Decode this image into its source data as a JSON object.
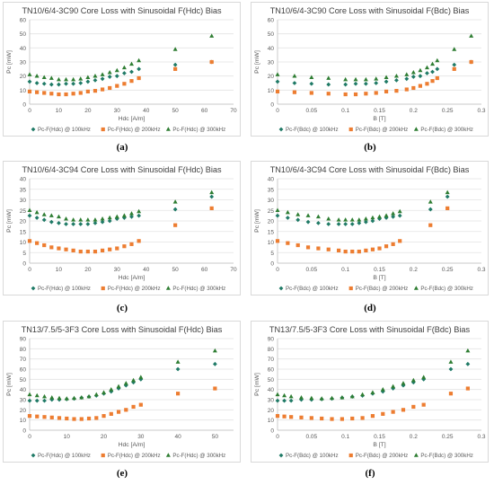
{
  "chart_data": [
    {
      "type": "scatter",
      "title": "TN10/6/4-3C90 Core Loss with Sinusoidal F(Hdc) Bias",
      "xlabel": "Hdc [A/m]",
      "ylabel": "Pc [mW]",
      "xlim": [
        0,
        70
      ],
      "ylim": [
        0,
        60
      ],
      "xticks": [
        0,
        10,
        20,
        30,
        40,
        50,
        60,
        70
      ],
      "yticks": [
        0,
        10,
        20,
        30,
        40,
        50,
        60
      ],
      "grid": true,
      "legend_position": "bottom",
      "caption": "(a)",
      "series": [
        {
          "name": "Pc-F(Hdc) @ 100kHz",
          "color": "#1f7a66",
          "marker": "diamond",
          "x": [
            0,
            2.5,
            5,
            7.5,
            10,
            12.5,
            15,
            17.5,
            20,
            22.5,
            25,
            27.5,
            30,
            32.5,
            35,
            37.5,
            50,
            62.5
          ],
          "y": [
            16,
            15,
            14.5,
            14,
            14,
            14.5,
            14.5,
            15,
            16,
            17,
            18,
            19.5,
            20,
            22,
            23,
            25,
            28,
            30
          ]
        },
        {
          "name": "Pc-F(Hdc) @ 200kHz",
          "color": "#ed7d31",
          "marker": "square",
          "x": [
            0,
            2.5,
            5,
            7.5,
            10,
            12.5,
            15,
            17.5,
            20,
            22.5,
            25,
            27.5,
            30,
            32.5,
            35,
            37.5,
            50,
            62.5
          ],
          "y": [
            9,
            8.5,
            8,
            7.5,
            7,
            7,
            7.5,
            8,
            9,
            9.5,
            10.5,
            11.5,
            13,
            14.5,
            16.5,
            18.5,
            25,
            30
          ]
        },
        {
          "name": "Pc-F(Hdc) @ 300kHz",
          "color": "#2e7d32",
          "marker": "triangle",
          "x": [
            0,
            2.5,
            5,
            7.5,
            10,
            12.5,
            15,
            17.5,
            20,
            22.5,
            25,
            27.5,
            30,
            32.5,
            35,
            37.5,
            50,
            62.5
          ],
          "y": [
            21,
            20,
            19,
            18.5,
            17.5,
            17.5,
            17.5,
            18,
            19,
            20,
            21,
            22.5,
            24,
            26,
            28.5,
            31,
            39,
            48.5
          ]
        }
      ]
    },
    {
      "type": "scatter",
      "title": "TN10/6/4-3C90 Core Loss with Sinusoidal F(Bdc) Bias",
      "xlabel": "B [T]",
      "ylabel": "Pc [mW]",
      "xlim": [
        0,
        0.3
      ],
      "ylim": [
        0,
        60
      ],
      "xticks": [
        0,
        0.05,
        0.1,
        0.15,
        0.2,
        0.25,
        0.3
      ],
      "yticks": [
        0,
        10,
        20,
        30,
        40,
        50,
        60
      ],
      "grid": true,
      "legend_position": "bottom",
      "caption": "(b)",
      "series": [
        {
          "name": "Pc-F(Bdc) @ 100kHz",
          "color": "#1f7a66",
          "marker": "diamond",
          "x": [
            0,
            0.025,
            0.05,
            0.075,
            0.1,
            0.115,
            0.13,
            0.145,
            0.16,
            0.175,
            0.19,
            0.2,
            0.21,
            0.22,
            0.228,
            0.235,
            0.26,
            0.285
          ],
          "y": [
            16,
            15,
            14.5,
            14,
            14,
            14.5,
            14.5,
            15,
            16,
            17,
            18,
            19.5,
            20,
            22,
            23,
            25,
            28,
            30
          ]
        },
        {
          "name": "Pc-F(Bdc) @ 200kHz",
          "color": "#ed7d31",
          "marker": "square",
          "x": [
            0,
            0.025,
            0.05,
            0.075,
            0.1,
            0.115,
            0.13,
            0.145,
            0.16,
            0.175,
            0.19,
            0.2,
            0.21,
            0.22,
            0.228,
            0.235,
            0.26,
            0.285
          ],
          "y": [
            9,
            8.5,
            8,
            7.5,
            7,
            7,
            7.5,
            8,
            9,
            9.5,
            10.5,
            11.5,
            13,
            14.5,
            16.5,
            18.5,
            25,
            30
          ]
        },
        {
          "name": "Pc-F(Bdc) @ 300kHz",
          "color": "#2e7d32",
          "marker": "triangle",
          "x": [
            0,
            0.025,
            0.05,
            0.075,
            0.1,
            0.115,
            0.13,
            0.145,
            0.16,
            0.175,
            0.19,
            0.2,
            0.21,
            0.22,
            0.228,
            0.235,
            0.26,
            0.285
          ],
          "y": [
            21,
            20,
            19,
            18.5,
            17.5,
            17.5,
            17.5,
            18,
            19,
            20,
            21,
            22.5,
            24,
            26,
            28.5,
            31,
            39,
            48.5
          ]
        }
      ]
    },
    {
      "type": "scatter",
      "title": "TN10/6/4-3C94 Core Loss with Sinusoidal F(Hdc) Bias",
      "xlabel": "Hdc [A/m]",
      "ylabel": "Pc [mW]",
      "xlim": [
        0,
        70
      ],
      "ylim": [
        0,
        40
      ],
      "xticks": [
        0,
        10,
        20,
        30,
        40,
        50,
        60,
        70
      ],
      "yticks": [
        0,
        5,
        10,
        15,
        20,
        25,
        30,
        35,
        40
      ],
      "grid": true,
      "legend_position": "bottom",
      "caption": "(c)",
      "series": [
        {
          "name": "Pc-F(Hdc) @ 100kHz",
          "color": "#1f7a66",
          "marker": "diamond",
          "x": [
            0,
            2.5,
            5,
            7.5,
            10,
            12.5,
            15,
            17.5,
            20,
            22.5,
            25,
            27.5,
            30,
            32.5,
            35,
            37.5,
            50,
            62.5
          ],
          "y": [
            22.5,
            21.5,
            20.5,
            19.5,
            19,
            18.5,
            18.5,
            18.5,
            18.5,
            19,
            19.5,
            20,
            21,
            21.5,
            22,
            22.5,
            25.5,
            31.5
          ]
        },
        {
          "name": "Pc-F(Hdc) @ 200kHz",
          "color": "#ed7d31",
          "marker": "square",
          "x": [
            0,
            2.5,
            5,
            7.5,
            10,
            12.5,
            15,
            17.5,
            20,
            22.5,
            25,
            27.5,
            30,
            32.5,
            35,
            37.5,
            50,
            62.5
          ],
          "y": [
            10.5,
            9.5,
            8.5,
            7.5,
            7,
            6.5,
            6,
            5.5,
            5.5,
            5.5,
            6,
            6.5,
            7,
            8,
            9,
            10.5,
            18,
            26
          ]
        },
        {
          "name": "Pc-F(Hdc) @ 300kHz",
          "color": "#2e7d32",
          "marker": "triangle",
          "x": [
            0,
            2.5,
            5,
            7.5,
            10,
            12.5,
            15,
            17.5,
            20,
            22.5,
            25,
            27.5,
            30,
            32.5,
            35,
            37.5,
            50,
            62.5
          ],
          "y": [
            25,
            24,
            23,
            22.5,
            22,
            21,
            20.5,
            20.5,
            20.5,
            20.5,
            21,
            21.5,
            22,
            22.5,
            23.5,
            24.5,
            29,
            33.5
          ]
        }
      ]
    },
    {
      "type": "scatter",
      "title": "TN10/6/4-3C94 Core Loss with Sinusoidal F(Bdc) Bias",
      "xlabel": "B [T]",
      "ylabel": "Pc [mW]",
      "xlim": [
        0,
        0.3
      ],
      "ylim": [
        0,
        40
      ],
      "xticks": [
        0,
        0.05,
        0.1,
        0.15,
        0.2,
        0.25,
        0.3
      ],
      "yticks": [
        0,
        5,
        10,
        15,
        20,
        25,
        30,
        35,
        40
      ],
      "grid": true,
      "legend_position": "bottom",
      "caption": "(d)",
      "series": [
        {
          "name": "Pc-F(Bdc) @ 100kHz",
          "color": "#1f7a66",
          "marker": "diamond",
          "x": [
            0,
            0.015,
            0.03,
            0.045,
            0.06,
            0.075,
            0.09,
            0.1,
            0.11,
            0.12,
            0.13,
            0.14,
            0.15,
            0.16,
            0.17,
            0.18,
            0.225,
            0.25
          ],
          "y": [
            22.5,
            21.5,
            20.5,
            19.5,
            19,
            18.5,
            18.5,
            18.5,
            18.5,
            19,
            19.5,
            20,
            21,
            21.5,
            22,
            22.5,
            25.5,
            31.5
          ]
        },
        {
          "name": "Pc-F(Bdc) @ 200kHz",
          "color": "#ed7d31",
          "marker": "square",
          "x": [
            0,
            0.015,
            0.03,
            0.045,
            0.06,
            0.075,
            0.09,
            0.1,
            0.11,
            0.12,
            0.13,
            0.14,
            0.15,
            0.16,
            0.17,
            0.18,
            0.225,
            0.25
          ],
          "y": [
            10.5,
            9.5,
            8.5,
            7.5,
            7,
            6.5,
            6,
            5.5,
            5.5,
            5.5,
            6,
            6.5,
            7,
            8,
            9,
            10.5,
            18,
            26
          ]
        },
        {
          "name": "Pc-F(Bdc) @ 300kHz",
          "color": "#2e7d32",
          "marker": "triangle",
          "x": [
            0,
            0.015,
            0.03,
            0.045,
            0.06,
            0.075,
            0.09,
            0.1,
            0.11,
            0.12,
            0.13,
            0.14,
            0.15,
            0.16,
            0.17,
            0.18,
            0.225,
            0.25
          ],
          "y": [
            25,
            24,
            23,
            22.5,
            22,
            21,
            20.5,
            20.5,
            20.5,
            20.5,
            21,
            21.5,
            22,
            22.5,
            23.5,
            24.5,
            29,
            33.5
          ]
        }
      ]
    },
    {
      "type": "scatter",
      "title": "TN13/7.5/5-3F3 Core Loss with Sinusoidal F(Hdc) Bias",
      "xlabel": "Hdc [A/m]",
      "ylabel": "Pc [mW]",
      "xlim": [
        0,
        55
      ],
      "ylim": [
        0,
        90
      ],
      "xticks": [
        0,
        10,
        20,
        30,
        40,
        50
      ],
      "yticks": [
        0,
        10,
        20,
        30,
        40,
        50,
        60,
        70,
        80,
        90
      ],
      "grid": true,
      "legend_position": "bottom",
      "caption": "(e)",
      "series": [
        {
          "name": "Pc-F(Hdc) @ 100kHz",
          "color": "#1f7a66",
          "marker": "diamond",
          "x": [
            0,
            2,
            4,
            6,
            8,
            10,
            12,
            14,
            16,
            18,
            20,
            22,
            24,
            26,
            28,
            30,
            40,
            50
          ],
          "y": [
            29,
            29,
            29,
            30,
            30,
            30.5,
            31,
            32,
            33,
            34,
            36,
            38,
            41,
            44,
            47,
            50,
            60,
            65
          ]
        },
        {
          "name": "Pc-F(Hdc) @ 200kHz",
          "color": "#ed7d31",
          "marker": "square",
          "x": [
            0,
            2,
            4,
            6,
            8,
            10,
            12,
            14,
            16,
            18,
            20,
            22,
            24,
            26,
            28,
            30,
            40,
            50
          ],
          "y": [
            14,
            13.5,
            13,
            12.5,
            12,
            11.5,
            11,
            11,
            11.5,
            12,
            14,
            16,
            18,
            20,
            23,
            25,
            36,
            41
          ]
        },
        {
          "name": "Pc-F(Hdc) @ 300kHz",
          "color": "#2e7d32",
          "marker": "triangle",
          "x": [
            0,
            2,
            4,
            6,
            8,
            10,
            12,
            14,
            16,
            18,
            20,
            22,
            24,
            26,
            28,
            30,
            40,
            50
          ],
          "y": [
            35,
            34,
            33,
            32,
            31.5,
            31,
            31.5,
            32,
            33,
            35,
            37,
            40,
            43,
            46,
            49,
            52,
            67,
            78
          ]
        }
      ]
    },
    {
      "type": "scatter",
      "title": "TN13/7.5/5-3F3 Core Loss with Sinusoidal F(Bdc) Bias",
      "xlabel": "B [T]",
      "ylabel": "Pc [mW]",
      "xlim": [
        0,
        0.3
      ],
      "ylim": [
        0,
        90
      ],
      "xticks": [
        0,
        0.05,
        0.1,
        0.15,
        0.2,
        0.25,
        0.3
      ],
      "yticks": [
        0,
        10,
        20,
        30,
        40,
        50,
        60,
        70,
        80,
        90
      ],
      "grid": true,
      "legend_position": "bottom",
      "caption": "(f)",
      "series": [
        {
          "name": "Pc-F(Bdc) @ 100kHz",
          "color": "#1f7a66",
          "marker": "diamond",
          "x": [
            0,
            0.01,
            0.02,
            0.035,
            0.05,
            0.065,
            0.08,
            0.095,
            0.11,
            0.125,
            0.14,
            0.155,
            0.17,
            0.185,
            0.2,
            0.215,
            0.255,
            0.28
          ],
          "y": [
            29,
            29,
            29,
            30,
            30,
            30.5,
            31,
            32,
            33,
            34,
            36,
            38,
            41,
            44,
            47,
            50,
            60,
            65
          ]
        },
        {
          "name": "Pc-F(Bdc) @ 200kHz",
          "color": "#ed7d31",
          "marker": "square",
          "x": [
            0,
            0.01,
            0.02,
            0.035,
            0.05,
            0.065,
            0.08,
            0.095,
            0.11,
            0.125,
            0.14,
            0.155,
            0.17,
            0.185,
            0.2,
            0.215,
            0.255,
            0.28
          ],
          "y": [
            14,
            13.5,
            13,
            12.5,
            12,
            11.5,
            11,
            11,
            11.5,
            12,
            14,
            16,
            18,
            20,
            23,
            25,
            36,
            41
          ]
        },
        {
          "name": "Pc-F(Bdc) @ 300kHz",
          "color": "#2e7d32",
          "marker": "triangle",
          "x": [
            0,
            0.01,
            0.02,
            0.035,
            0.05,
            0.065,
            0.08,
            0.095,
            0.11,
            0.125,
            0.14,
            0.155,
            0.17,
            0.185,
            0.2,
            0.215,
            0.255,
            0.28
          ],
          "y": [
            35,
            34,
            33,
            32,
            31.5,
            31,
            31.5,
            32,
            33,
            35,
            37,
            40,
            43,
            46,
            49,
            52,
            67,
            78
          ]
        }
      ]
    }
  ]
}
